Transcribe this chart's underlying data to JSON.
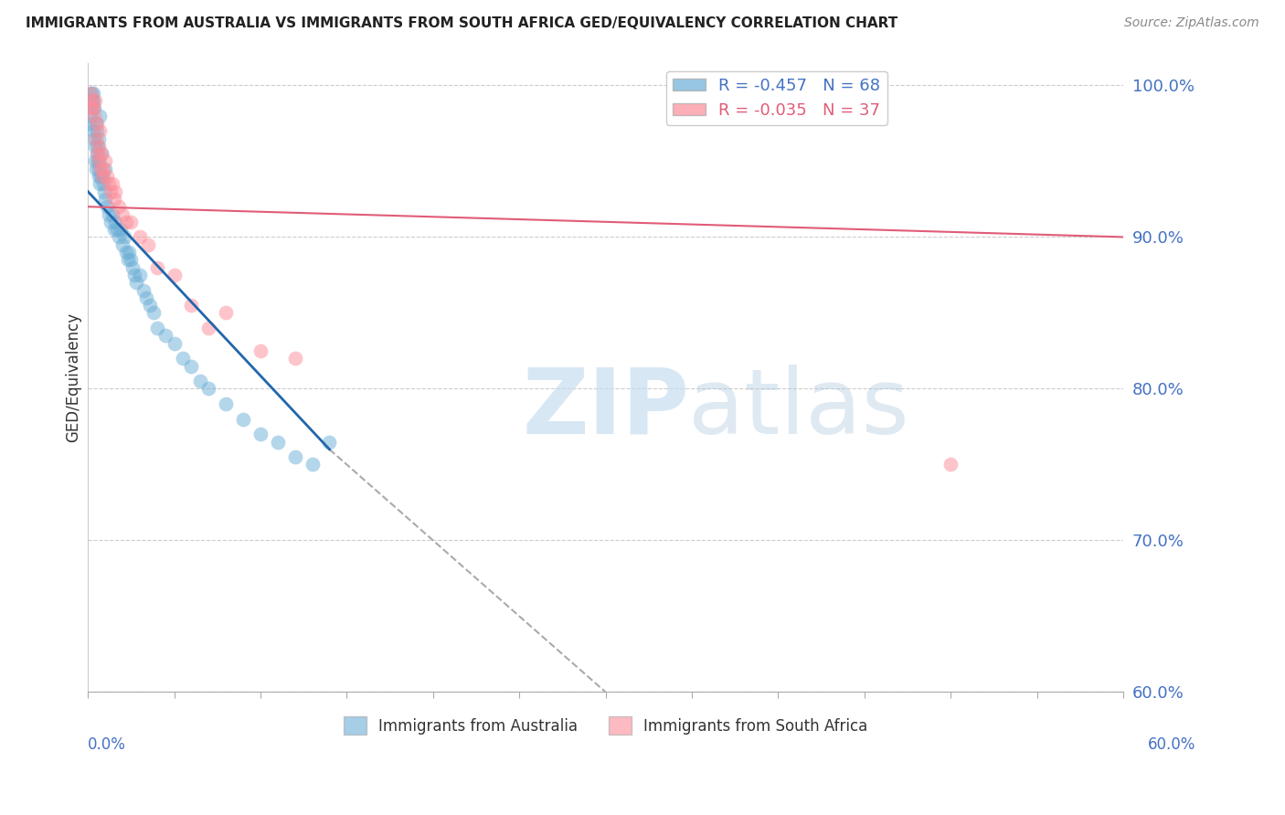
{
  "title": "IMMIGRANTS FROM AUSTRALIA VS IMMIGRANTS FROM SOUTH AFRICA GED/EQUIVALENCY CORRELATION CHART",
  "source": "Source: ZipAtlas.com",
  "ylabel": "GED/Equivalency",
  "y_ticks": [
    60.0,
    70.0,
    80.0,
    90.0,
    100.0
  ],
  "x_min": 0.0,
  "x_max": 60.0,
  "y_min": 60.0,
  "y_max": 101.5,
  "australia_R": -0.457,
  "australia_N": 68,
  "sa_R": -0.035,
  "sa_N": 37,
  "australia_color": "#6baed6",
  "sa_color": "#fc8d99",
  "australia_line_color": "#2166ac",
  "sa_line_color": "#e05c78",
  "aus_line_x0": 0.0,
  "aus_line_y0": 93.0,
  "aus_line_x1": 14.0,
  "aus_line_y1": 76.0,
  "aus_dash_x1": 30.0,
  "aus_dash_y1": 60.0,
  "sa_line_x0": 0.0,
  "sa_line_y0": 92.0,
  "sa_line_x1": 60.0,
  "sa_line_y1": 90.0,
  "aus_pts_x": [
    0.1,
    0.15,
    0.2,
    0.25,
    0.3,
    0.3,
    0.35,
    0.35,
    0.4,
    0.4,
    0.45,
    0.5,
    0.5,
    0.55,
    0.6,
    0.6,
    0.65,
    0.7,
    0.7,
    0.75,
    0.8,
    0.85,
    0.9,
    0.95,
    1.0,
    1.0,
    1.1,
    1.2,
    1.3,
    1.4,
    1.5,
    1.6,
    1.7,
    1.8,
    1.9,
    2.0,
    2.1,
    2.2,
    2.3,
    2.4,
    2.5,
    2.6,
    2.7,
    2.8,
    3.0,
    3.2,
    3.4,
    3.6,
    3.8,
    4.0,
    4.5,
    5.0,
    5.5,
    6.0,
    6.5,
    7.0,
    8.0,
    9.0,
    10.0,
    11.0,
    12.0,
    13.0,
    14.0,
    0.2,
    0.3,
    0.45,
    0.55,
    0.65
  ],
  "aus_pts_y": [
    97.5,
    98.0,
    99.5,
    99.0,
    99.0,
    99.5,
    98.5,
    96.5,
    95.0,
    96.0,
    94.5,
    97.0,
    95.5,
    95.0,
    96.5,
    94.5,
    95.0,
    98.0,
    93.5,
    94.0,
    95.5,
    94.0,
    93.5,
    93.0,
    94.5,
    92.5,
    92.0,
    91.5,
    91.0,
    91.5,
    90.5,
    91.0,
    90.5,
    90.0,
    90.5,
    89.5,
    90.0,
    89.0,
    88.5,
    89.0,
    88.5,
    88.0,
    87.5,
    87.0,
    87.5,
    86.5,
    86.0,
    85.5,
    85.0,
    84.0,
    83.5,
    83.0,
    82.0,
    81.5,
    80.5,
    80.0,
    79.0,
    78.0,
    77.0,
    76.5,
    75.5,
    75.0,
    76.5,
    98.5,
    97.0,
    97.5,
    96.0,
    94.0
  ],
  "sa_pts_x": [
    0.15,
    0.2,
    0.3,
    0.4,
    0.5,
    0.6,
    0.7,
    0.8,
    0.9,
    1.0,
    1.1,
    1.2,
    1.3,
    1.4,
    1.5,
    1.6,
    1.8,
    2.0,
    2.2,
    2.5,
    3.0,
    3.5,
    4.0,
    5.0,
    6.0,
    7.0,
    8.0,
    10.0,
    12.0,
    50.0,
    0.25,
    0.35,
    0.45,
    0.55,
    0.65,
    0.75,
    0.85
  ],
  "sa_pts_y": [
    99.5,
    99.0,
    98.5,
    99.0,
    97.5,
    96.0,
    97.0,
    95.5,
    94.5,
    95.0,
    94.0,
    93.5,
    93.0,
    93.5,
    92.5,
    93.0,
    92.0,
    91.5,
    91.0,
    91.0,
    90.0,
    89.5,
    88.0,
    87.5,
    85.5,
    84.0,
    85.0,
    82.5,
    82.0,
    75.0,
    98.5,
    98.0,
    96.5,
    95.5,
    95.0,
    94.5,
    94.0
  ]
}
